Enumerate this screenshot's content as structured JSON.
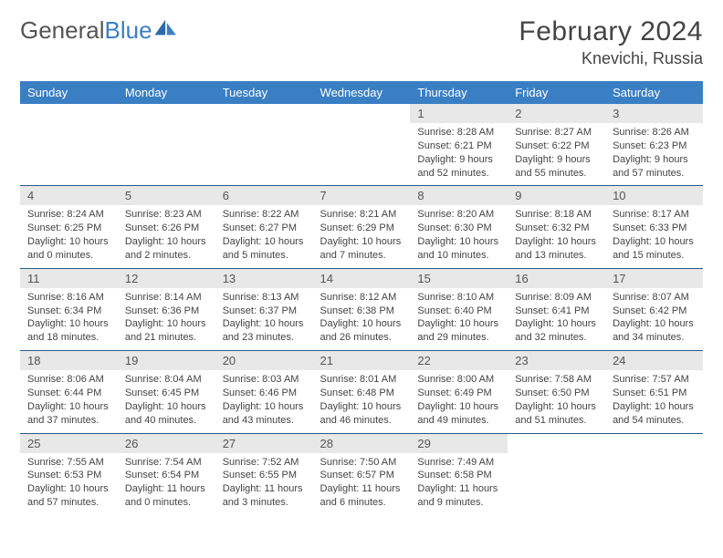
{
  "logo": {
    "word1": "General",
    "word2": "Blue"
  },
  "title": "February 2024",
  "location": "Knevichi, Russia",
  "colors": {
    "header_bg": "#3a7fc4",
    "header_text": "#ffffff",
    "daynum_bg": "#e8e8e8",
    "rule": "#2a5a8a",
    "body_text": "#444444"
  },
  "day_headers": [
    "Sunday",
    "Monday",
    "Tuesday",
    "Wednesday",
    "Thursday",
    "Friday",
    "Saturday"
  ],
  "weeks": [
    [
      null,
      null,
      null,
      null,
      {
        "n": "1",
        "sr": "8:28 AM",
        "ss": "6:21 PM",
        "dl": "9 hours and 52 minutes."
      },
      {
        "n": "2",
        "sr": "8:27 AM",
        "ss": "6:22 PM",
        "dl": "9 hours and 55 minutes."
      },
      {
        "n": "3",
        "sr": "8:26 AM",
        "ss": "6:23 PM",
        "dl": "9 hours and 57 minutes."
      }
    ],
    [
      {
        "n": "4",
        "sr": "8:24 AM",
        "ss": "6:25 PM",
        "dl": "10 hours and 0 minutes."
      },
      {
        "n": "5",
        "sr": "8:23 AM",
        "ss": "6:26 PM",
        "dl": "10 hours and 2 minutes."
      },
      {
        "n": "6",
        "sr": "8:22 AM",
        "ss": "6:27 PM",
        "dl": "10 hours and 5 minutes."
      },
      {
        "n": "7",
        "sr": "8:21 AM",
        "ss": "6:29 PM",
        "dl": "10 hours and 7 minutes."
      },
      {
        "n": "8",
        "sr": "8:20 AM",
        "ss": "6:30 PM",
        "dl": "10 hours and 10 minutes."
      },
      {
        "n": "9",
        "sr": "8:18 AM",
        "ss": "6:32 PM",
        "dl": "10 hours and 13 minutes."
      },
      {
        "n": "10",
        "sr": "8:17 AM",
        "ss": "6:33 PM",
        "dl": "10 hours and 15 minutes."
      }
    ],
    [
      {
        "n": "11",
        "sr": "8:16 AM",
        "ss": "6:34 PM",
        "dl": "10 hours and 18 minutes."
      },
      {
        "n": "12",
        "sr": "8:14 AM",
        "ss": "6:36 PM",
        "dl": "10 hours and 21 minutes."
      },
      {
        "n": "13",
        "sr": "8:13 AM",
        "ss": "6:37 PM",
        "dl": "10 hours and 23 minutes."
      },
      {
        "n": "14",
        "sr": "8:12 AM",
        "ss": "6:38 PM",
        "dl": "10 hours and 26 minutes."
      },
      {
        "n": "15",
        "sr": "8:10 AM",
        "ss": "6:40 PM",
        "dl": "10 hours and 29 minutes."
      },
      {
        "n": "16",
        "sr": "8:09 AM",
        "ss": "6:41 PM",
        "dl": "10 hours and 32 minutes."
      },
      {
        "n": "17",
        "sr": "8:07 AM",
        "ss": "6:42 PM",
        "dl": "10 hours and 34 minutes."
      }
    ],
    [
      {
        "n": "18",
        "sr": "8:06 AM",
        "ss": "6:44 PM",
        "dl": "10 hours and 37 minutes."
      },
      {
        "n": "19",
        "sr": "8:04 AM",
        "ss": "6:45 PM",
        "dl": "10 hours and 40 minutes."
      },
      {
        "n": "20",
        "sr": "8:03 AM",
        "ss": "6:46 PM",
        "dl": "10 hours and 43 minutes."
      },
      {
        "n": "21",
        "sr": "8:01 AM",
        "ss": "6:48 PM",
        "dl": "10 hours and 46 minutes."
      },
      {
        "n": "22",
        "sr": "8:00 AM",
        "ss": "6:49 PM",
        "dl": "10 hours and 49 minutes."
      },
      {
        "n": "23",
        "sr": "7:58 AM",
        "ss": "6:50 PM",
        "dl": "10 hours and 51 minutes."
      },
      {
        "n": "24",
        "sr": "7:57 AM",
        "ss": "6:51 PM",
        "dl": "10 hours and 54 minutes."
      }
    ],
    [
      {
        "n": "25",
        "sr": "7:55 AM",
        "ss": "6:53 PM",
        "dl": "10 hours and 57 minutes."
      },
      {
        "n": "26",
        "sr": "7:54 AM",
        "ss": "6:54 PM",
        "dl": "11 hours and 0 minutes."
      },
      {
        "n": "27",
        "sr": "7:52 AM",
        "ss": "6:55 PM",
        "dl": "11 hours and 3 minutes."
      },
      {
        "n": "28",
        "sr": "7:50 AM",
        "ss": "6:57 PM",
        "dl": "11 hours and 6 minutes."
      },
      {
        "n": "29",
        "sr": "7:49 AM",
        "ss": "6:58 PM",
        "dl": "11 hours and 9 minutes."
      },
      null,
      null
    ]
  ],
  "labels": {
    "sunrise": "Sunrise: ",
    "sunset": "Sunset: ",
    "daylight": "Daylight: "
  }
}
